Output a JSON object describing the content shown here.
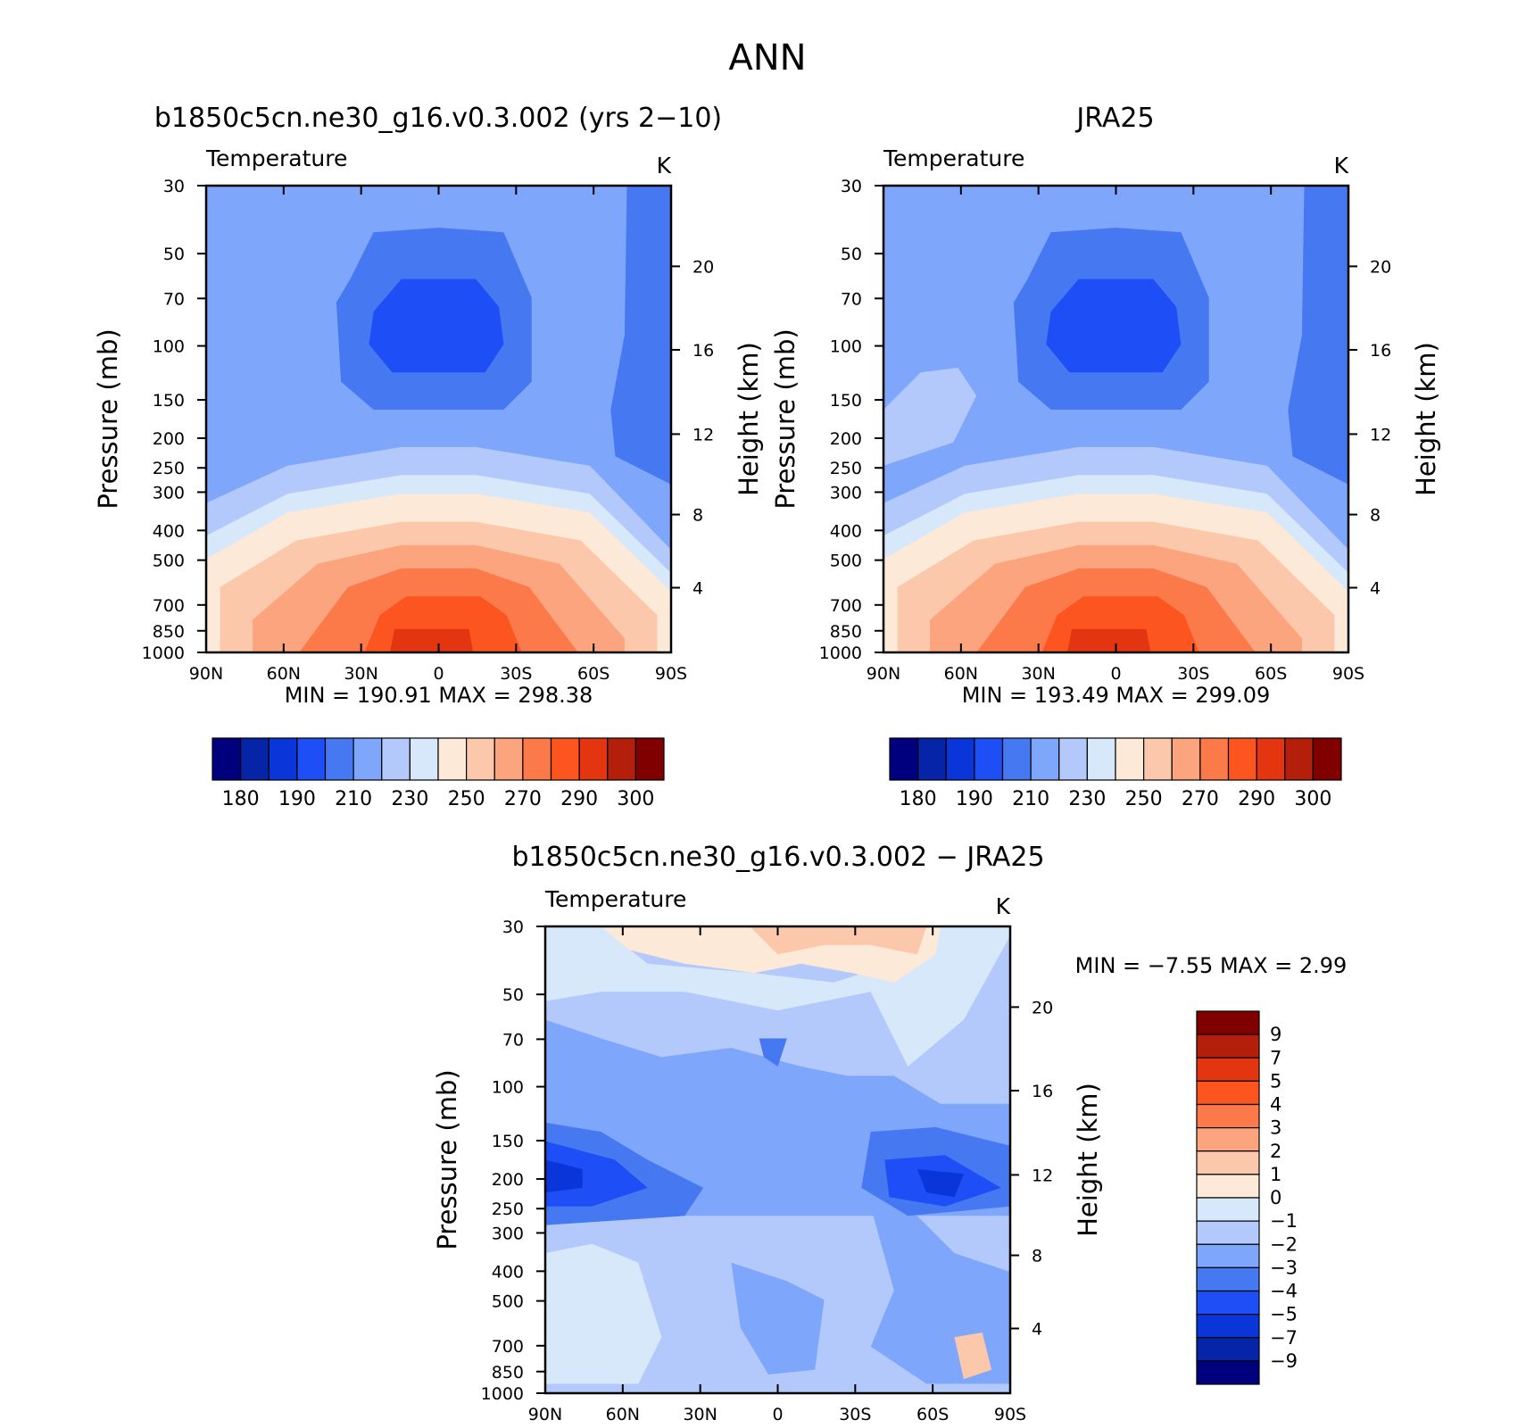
{
  "figure_title": "ANN",
  "colors": {
    "abs": [
      "#00007f",
      "#0524a8",
      "#0a35d8",
      "#1e4ef5",
      "#4678f2",
      "#7ea6fb",
      "#b3c9fb",
      "#d8e8fb",
      "#fde9d7",
      "#fbc8ab",
      "#fba47d",
      "#fc7a4a",
      "#fc5520",
      "#e33610",
      "#b31f0a",
      "#800000"
    ],
    "diff": [
      "#00007f",
      "#0524a8",
      "#0a35d8",
      "#1e4ef5",
      "#4678f2",
      "#7ea6fb",
      "#b3c9fb",
      "#d8e8fb",
      "#fde9d7",
      "#fbc8ab",
      "#fba47d",
      "#fc7a4a",
      "#fc5520",
      "#e33610",
      "#b31f0a",
      "#800000"
    ]
  },
  "chart_data": [
    {
      "type": "heatmap",
      "title": "b1850c5cn.ne30_g16.v0.3.002 (yrs 2−10)",
      "variable": "Temperature",
      "units": "K",
      "ylabel": "Pressure (mb)",
      "y2label": "Height (km)",
      "x_ticks": [
        "90N",
        "60N",
        "30N",
        "0",
        "30S",
        "60S",
        "90S"
      ],
      "y_ticks": [
        "30",
        "50",
        "70",
        "100",
        "150",
        "200",
        "250",
        "300",
        "400",
        "500",
        "700",
        "850",
        "1000"
      ],
      "y2_ticks": [
        "20",
        "16",
        "12",
        "8",
        "4"
      ],
      "stats_text": "MIN =  190.91   MAX =  298.38",
      "colorbar_labels": [
        "180",
        "190",
        "210",
        "230",
        "250",
        "270",
        "290",
        "300"
      ]
    },
    {
      "type": "heatmap",
      "title": "JRA25",
      "variable": "Temperature",
      "units": "K",
      "ylabel": "Pressure (mb)",
      "y2label": "Height (km)",
      "x_ticks": [
        "90N",
        "60N",
        "30N",
        "0",
        "30S",
        "60S",
        "90S"
      ],
      "y_ticks": [
        "30",
        "50",
        "70",
        "100",
        "150",
        "200",
        "250",
        "300",
        "400",
        "500",
        "700",
        "850",
        "1000"
      ],
      "y2_ticks": [
        "20",
        "16",
        "12",
        "8",
        "4"
      ],
      "stats_text": "MIN =  193.49   MAX =  299.09",
      "colorbar_labels": [
        "180",
        "190",
        "210",
        "230",
        "250",
        "270",
        "290",
        "300"
      ]
    },
    {
      "type": "heatmap",
      "title": "b1850c5cn.ne30_g16.v0.3.002 − JRA25",
      "variable": "Temperature",
      "units": "K",
      "ylabel": "Pressure (mb)",
      "y2label": "Height (km)",
      "x_ticks": [
        "90N",
        "60N",
        "30N",
        "0",
        "30S",
        "60S",
        "90S"
      ],
      "y_ticks": [
        "30",
        "50",
        "70",
        "100",
        "150",
        "200",
        "250",
        "300",
        "400",
        "500",
        "700",
        "850",
        "1000"
      ],
      "y2_ticks": [
        "20",
        "16",
        "12",
        "8",
        "4"
      ],
      "stats_text": "MIN =    −7.55    MAX =     2.99",
      "colorbar_labels": [
        "9",
        "7",
        "5",
        "4",
        "3",
        "2",
        "1",
        "0",
        "−1",
        "−2",
        "−3",
        "−4",
        "−5",
        "−7",
        "−9"
      ]
    }
  ]
}
